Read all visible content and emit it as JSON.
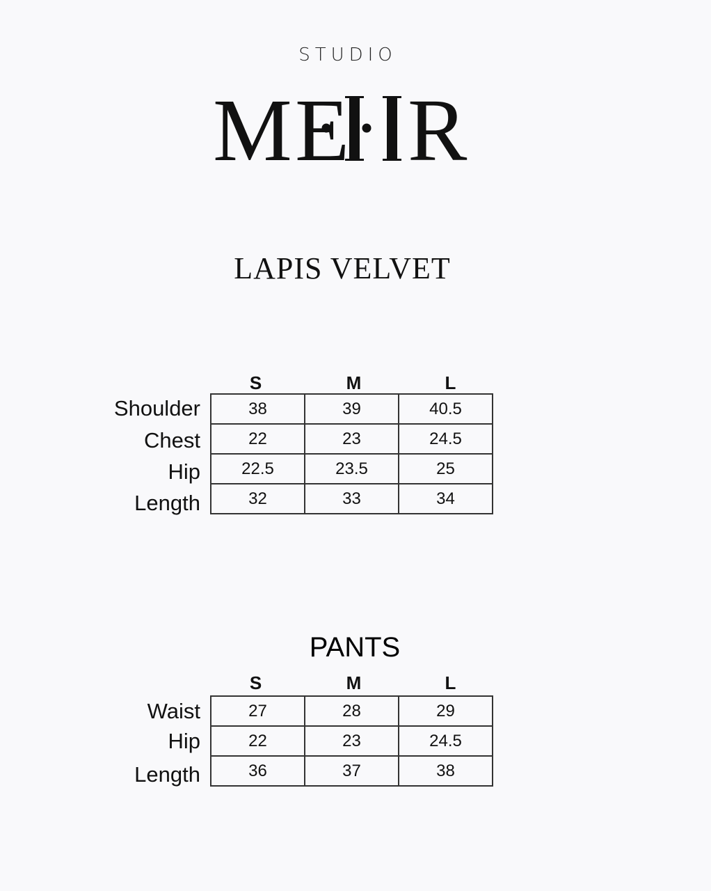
{
  "brand": {
    "studio": "STUDIO",
    "logo": "MEHR"
  },
  "product_title": "LAPIS VELVET",
  "top_table": {
    "sizes": [
      "S",
      "M",
      "L"
    ],
    "rows": [
      {
        "label": "Shoulder",
        "values": [
          "38",
          "39",
          "40.5"
        ]
      },
      {
        "label": "Chest",
        "values": [
          "22",
          "23",
          "24.5"
        ]
      },
      {
        "label": "Hip",
        "values": [
          "22.5",
          "23.5",
          "25"
        ]
      },
      {
        "label": "Length",
        "values": [
          "32",
          "33",
          "34"
        ]
      }
    ]
  },
  "pants_table": {
    "title": "PANTS",
    "sizes": [
      "S",
      "M",
      "L"
    ],
    "rows": [
      {
        "label": "Waist",
        "values": [
          "27",
          "28",
          "29"
        ]
      },
      {
        "label": "Hip",
        "values": [
          "22",
          "23",
          "24.5"
        ]
      },
      {
        "label": "Length",
        "values": [
          "36",
          "37",
          "38"
        ]
      }
    ]
  }
}
